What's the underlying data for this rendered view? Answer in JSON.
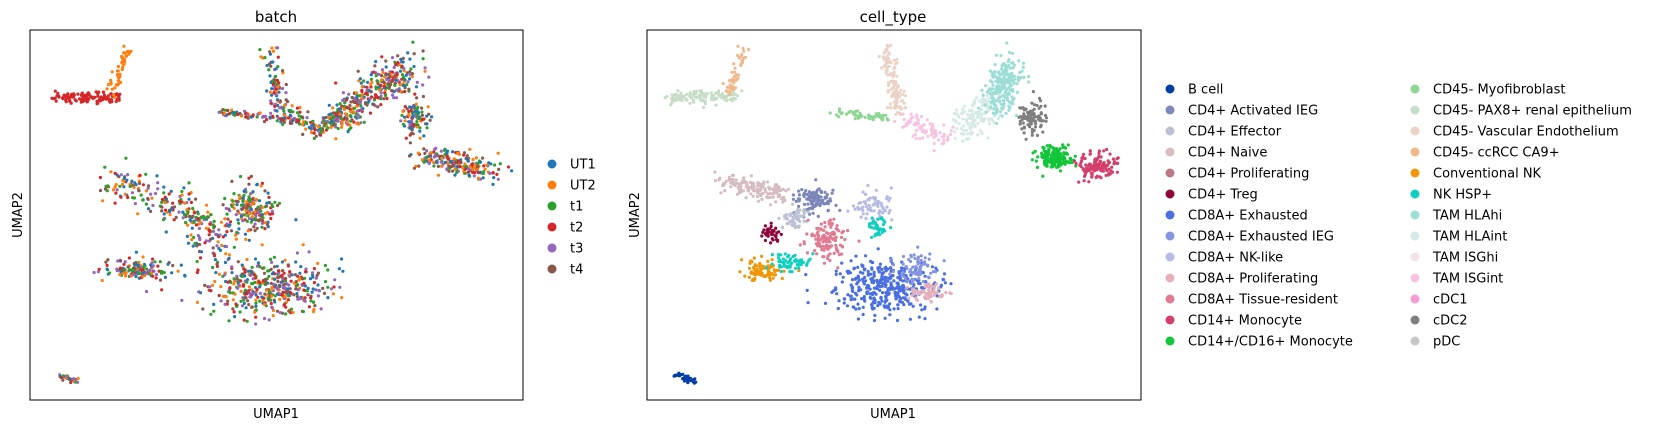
{
  "chart_data": [
    {
      "type": "scatter",
      "title": "batch",
      "xlabel": "UMAP1",
      "ylabel": "UMAP2",
      "legend_position": "right",
      "grid": false,
      "xticks": [],
      "yticks": [],
      "series": [
        {
          "name": "UT1",
          "color": "#1f77b4"
        },
        {
          "name": "UT2",
          "color": "#ff7f0e"
        },
        {
          "name": "t1",
          "color": "#2ca02c"
        },
        {
          "name": "t2",
          "color": "#d62728"
        },
        {
          "name": "t3",
          "color": "#9467bd"
        },
        {
          "name": "t4",
          "color": "#8c564b"
        }
      ]
    },
    {
      "type": "scatter",
      "title": "cell_type",
      "xlabel": "UMAP1",
      "ylabel": "UMAP2",
      "legend_position": "right",
      "grid": false,
      "xticks": [],
      "yticks": [],
      "series": [
        {
          "name": "B cell",
          "color": "#023fa5"
        },
        {
          "name": "CD4+ Activated IEG",
          "color": "#7d87b9"
        },
        {
          "name": "CD4+ Effector",
          "color": "#bec1d4"
        },
        {
          "name": "CD4+ Naive",
          "color": "#d6bcc0"
        },
        {
          "name": "CD4+ Proliferating",
          "color": "#bb7784"
        },
        {
          "name": "CD4+ Treg",
          "color": "#8e063b"
        },
        {
          "name": "CD8A+ Exhausted",
          "color": "#4a6fe3"
        },
        {
          "name": "CD8A+ Exhausted IEG",
          "color": "#8595e1"
        },
        {
          "name": "CD8A+ NK-like",
          "color": "#b5bbe3"
        },
        {
          "name": "CD8A+ Proliferating",
          "color": "#e6afb9"
        },
        {
          "name": "CD8A+ Tissue-resident",
          "color": "#e07b91"
        },
        {
          "name": "CD14+ Monocyte",
          "color": "#d33f6a"
        },
        {
          "name": "CD14+/CD16+ Monocyte",
          "color": "#11c638"
        },
        {
          "name": "CD45- Myofibroblast",
          "color": "#8dd593"
        },
        {
          "name": "CD45- PAX8+ renal epithelium",
          "color": "#c6dec7"
        },
        {
          "name": "CD45- Vascular Endothelium",
          "color": "#ead3c6"
        },
        {
          "name": "CD45- ccRCC CA9+",
          "color": "#f0b98d"
        },
        {
          "name": "Conventional NK",
          "color": "#ef9708"
        },
        {
          "name": "NK HSP+",
          "color": "#0fcfc0"
        },
        {
          "name": "TAM HLAhi",
          "color": "#9cded6"
        },
        {
          "name": "TAM HLAint",
          "color": "#d5eae7"
        },
        {
          "name": "TAM ISGhi",
          "color": "#f3e1eb"
        },
        {
          "name": "TAM ISGint",
          "color": "#f6c4e1"
        },
        {
          "name": "cDC1",
          "color": "#f79cd4"
        },
        {
          "name": "cDC2",
          "color": "#7f7f7f"
        },
        {
          "name": "pDC",
          "color": "#c7c7c7"
        }
      ]
    }
  ]
}
